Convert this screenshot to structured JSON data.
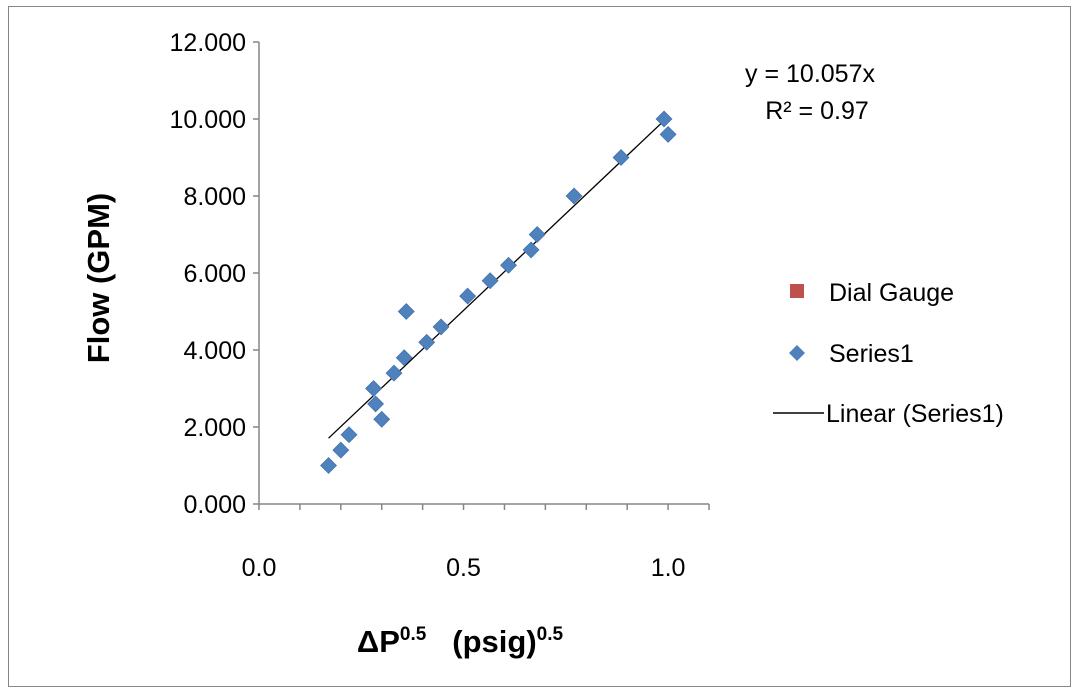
{
  "chart_data": {
    "type": "scatter",
    "xlabel_main": "ΔP",
    "xlabel_main_sup": "0.5",
    "xlabel_unit": "(psig)",
    "xlabel_unit_sup": "0.5",
    "ylabel": "Flow (GPM)",
    "xlim": [
      0.0,
      1.1
    ],
    "ylim": [
      0.0,
      12.0
    ],
    "x_ticks": [
      "0.0",
      "0.5",
      "1.0"
    ],
    "y_ticks": [
      "0.000",
      "2.000",
      "4.000",
      "6.000",
      "8.000",
      "10.000",
      "12.000"
    ],
    "grid": false,
    "legend_position": "right",
    "series": [
      {
        "name": "Dial Gauge",
        "marker": "square",
        "color": "#c0504d",
        "points": []
      },
      {
        "name": "Series1",
        "marker": "diamond",
        "color": "#4f81bd",
        "points": [
          [
            0.17,
            1.0
          ],
          [
            0.2,
            1.4
          ],
          [
            0.22,
            1.8
          ],
          [
            0.28,
            3.0
          ],
          [
            0.285,
            2.6
          ],
          [
            0.3,
            2.2
          ],
          [
            0.33,
            3.4
          ],
          [
            0.355,
            3.8
          ],
          [
            0.36,
            5.0
          ],
          [
            0.41,
            4.2
          ],
          [
            0.445,
            4.6
          ],
          [
            0.51,
            5.4
          ],
          [
            0.565,
            5.8
          ],
          [
            0.61,
            6.2
          ],
          [
            0.665,
            6.6
          ],
          [
            0.68,
            7.0
          ],
          [
            0.77,
            8.0
          ],
          [
            0.885,
            9.0
          ],
          [
            0.99,
            10.0
          ],
          [
            1.0,
            9.6
          ]
        ]
      }
    ],
    "trendline": {
      "name": "Linear (Series1)",
      "color": "#000000",
      "slope": 10.057,
      "x_range": [
        0.17,
        1.0
      ]
    },
    "annotations": {
      "equation": "y = 10.057x",
      "r_squared": "R² = 0.97"
    }
  }
}
